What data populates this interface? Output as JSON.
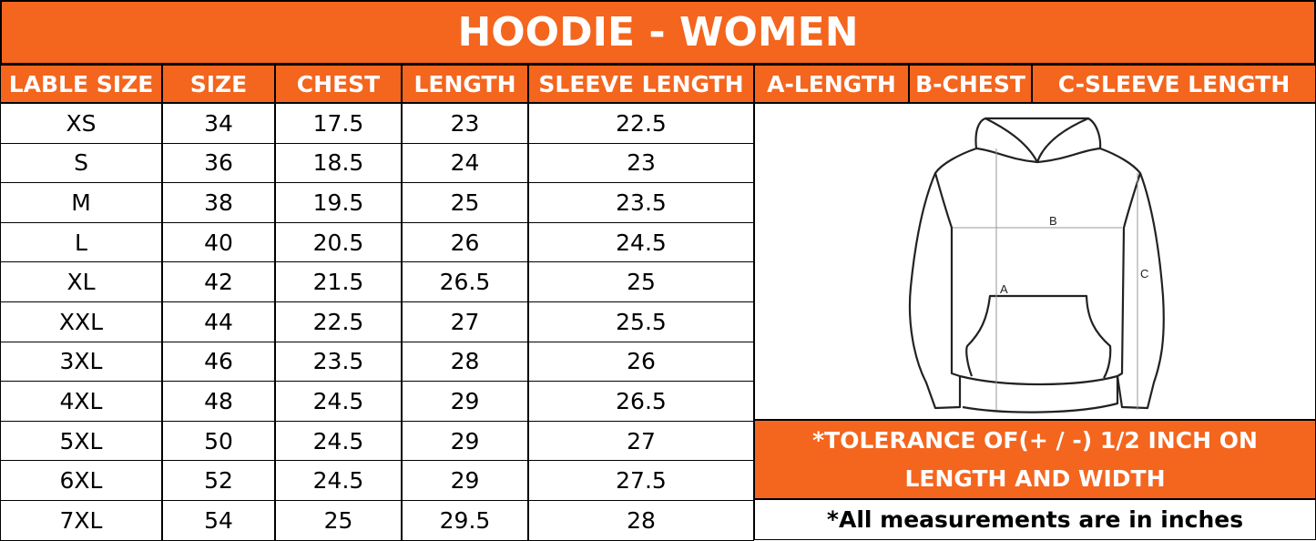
{
  "title": "HOODIE - WOMEN",
  "columns": [
    "LABLE SIZE",
    "SIZE",
    "CHEST",
    "LENGTH",
    "SLEEVE LENGTH"
  ],
  "diagram_headers": [
    "A-LENGTH",
    "B-CHEST",
    "C-SLEEVE LENGTH"
  ],
  "rows": [
    [
      "XS",
      "34",
      "17.5",
      "23",
      "22.5"
    ],
    [
      "S",
      "36",
      "18.5",
      "24",
      "23"
    ],
    [
      "M",
      "38",
      "19.5",
      "25",
      "23.5"
    ],
    [
      "L",
      "40",
      "20.5",
      "26",
      "24.5"
    ],
    [
      "XL",
      "42",
      "21.5",
      "26.5",
      "25"
    ],
    [
      "XXL",
      "44",
      "22.5",
      "27",
      "25.5"
    ],
    [
      "3XL",
      "46",
      "23.5",
      "28",
      "26"
    ],
    [
      "4XL",
      "48",
      "24.5",
      "29",
      "26.5"
    ],
    [
      "5XL",
      "50",
      "24.5",
      "29",
      "27"
    ],
    [
      "6XL",
      "52",
      "24.5",
      "29",
      "27.5"
    ],
    [
      "7XL",
      "54",
      "25",
      "29.5",
      "28"
    ]
  ],
  "diagram_labels": {
    "a": "A",
    "b": "B",
    "c": "C"
  },
  "tolerance": "*TOLERANCE OF(+ / -) 1/2 INCH ON LENGTH AND WIDTH",
  "note": "*All measurements are in inches",
  "colors": {
    "accent": "#F4651E"
  }
}
